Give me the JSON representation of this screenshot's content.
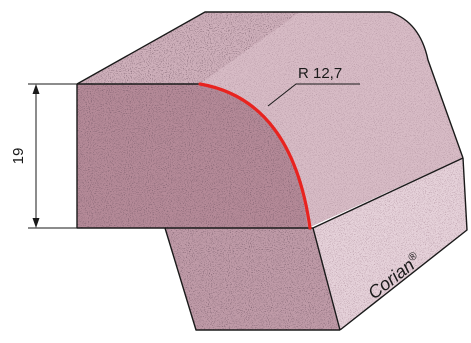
{
  "dimensions": {
    "height_label": "19",
    "radius_label": "R 12,7"
  },
  "brand": {
    "name": "Corian",
    "mark": "®"
  },
  "colors": {
    "front_face": "#b58a98",
    "top_face": "#cfb0bb",
    "curve_face": "#d8bcc6",
    "right_face": "#e6d2da",
    "bottom_face": "#c09ba8",
    "outline": "#1a1a1a",
    "radius_arc": "#e8231f"
  }
}
